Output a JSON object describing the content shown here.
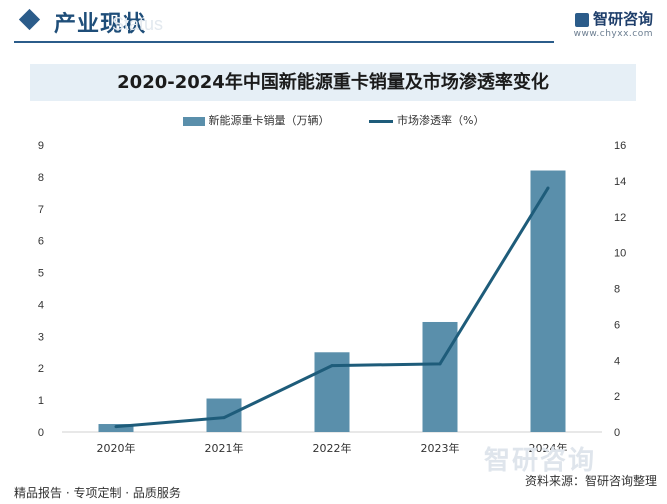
{
  "header": {
    "section_title": "产业现状",
    "ghost_text": "Status",
    "brand_name": "智研咨询",
    "brand_url": "www.chyxx.com"
  },
  "chart_data": {
    "type": "bar",
    "title": "2020-2024年中国新能源重卡销量及市场渗透率变化",
    "categories": [
      "2020年",
      "2021年",
      "2022年",
      "2023年",
      "2024年"
    ],
    "series": [
      {
        "name": "新能源重卡销量（万辆）",
        "type": "bar",
        "axis": "left",
        "values": [
          0.25,
          1.05,
          2.5,
          3.45,
          8.2
        ]
      },
      {
        "name": "市场渗透率（%）",
        "type": "line",
        "axis": "right",
        "values": [
          0.3,
          0.8,
          3.7,
          3.8,
          13.6
        ]
      }
    ],
    "ylim_left": [
      0,
      9
    ],
    "yticks_left": [
      0,
      1,
      2,
      3,
      4,
      5,
      6,
      7,
      8,
      9
    ],
    "ylim_right": [
      0,
      16
    ],
    "yticks_right": [
      0,
      2,
      4,
      6,
      8,
      10,
      12,
      14,
      16
    ],
    "legend_position": "top",
    "grid": false,
    "colors": {
      "bar": "#5a8fab",
      "line": "#1e5c7a"
    }
  },
  "footer": {
    "left_text": "精品报告 · 专项定制 · 品质服务",
    "right_text": "资料来源：智研咨询整理"
  },
  "watermark": "智研咨询"
}
